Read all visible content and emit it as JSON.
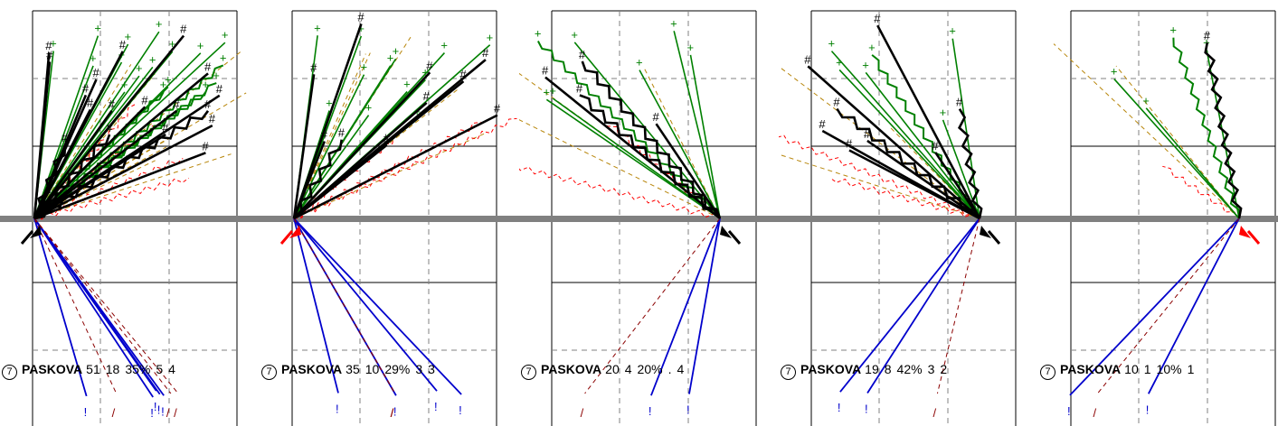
{
  "chart_data": {
    "type": "chart",
    "title": "",
    "xlabel": "",
    "ylabel": "",
    "panels": [
      {
        "rotation": "7",
        "player": "PASKOVA",
        "values": [
          "51",
          "18",
          "35%",
          "5",
          "4"
        ],
        "receiver": "left",
        "receiver_color": "#000000"
      },
      {
        "rotation": "7",
        "player": "PASKOVA",
        "values": [
          "35",
          "10",
          "29%",
          "3",
          "3"
        ],
        "receiver": "left",
        "receiver_color": "#ff0000"
      },
      {
        "rotation": "7",
        "player": "PASKOVA",
        "values": [
          "20",
          "4",
          "20%",
          ".",
          "4"
        ],
        "receiver": "right",
        "receiver_color": "#000000"
      },
      {
        "rotation": "7",
        "player": "PASKOVA",
        "values": [
          "19",
          "8",
          "42%",
          "3",
          "2"
        ],
        "receiver": "right",
        "receiver_color": "#000000"
      },
      {
        "rotation": "7",
        "player": "PASKOVA",
        "values": [
          "10",
          "1",
          "10%",
          "1",
          ""
        ],
        "receiver": "right",
        "receiver_color": "#ff0000"
      }
    ],
    "legend_symbols": {
      "kill": "#",
      "in_play": "+",
      "error": "!",
      "blocked": "/",
      "dig": "=",
      "ace": "o"
    },
    "colors": {
      "kill": "#000000",
      "in_play": "#008000",
      "error": "#0000cc",
      "out": "#b8860b",
      "blocked": "#8b0000",
      "dig": "#ff0000",
      "net": "#808080",
      "grid": "#808080"
    }
  }
}
